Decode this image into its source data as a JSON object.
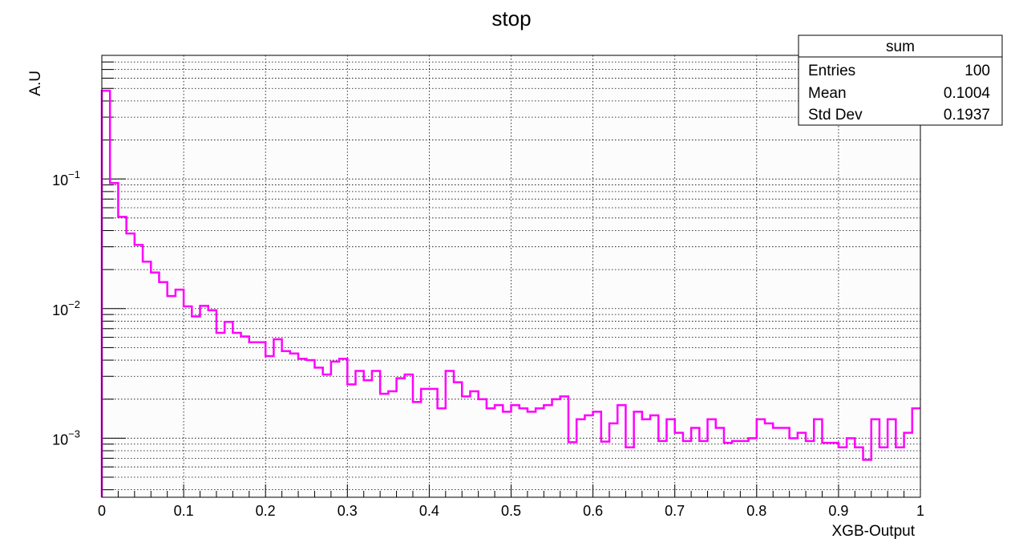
{
  "chart_data": {
    "type": "histogram",
    "title": "stop",
    "xlabel": "XGB-Output",
    "ylabel": "A.U",
    "xlim": [
      0,
      1
    ],
    "ylim": [
      0.00035,
      0.9
    ],
    "y_scale": "log",
    "grid": true,
    "line_color": "#ff00ff",
    "x_ticks": [
      "0",
      "0.1",
      "0.2",
      "0.3",
      "0.4",
      "0.5",
      "0.6",
      "0.7",
      "0.8",
      "0.9",
      "1"
    ],
    "y_ticks": [
      {
        "base": "10",
        "exp": "−1",
        "value": 0.1
      },
      {
        "base": "10",
        "exp": "−2",
        "value": 0.01
      },
      {
        "base": "10",
        "exp": "−3",
        "value": 0.001
      }
    ],
    "bins": 100,
    "series": [
      {
        "values": [
          0.48,
          0.093,
          0.051,
          0.038,
          0.031,
          0.023,
          0.019,
          0.016,
          0.0125,
          0.014,
          0.0104,
          0.0087,
          0.0105,
          0.0097,
          0.0065,
          0.0079,
          0.0065,
          0.0061,
          0.0055,
          0.0055,
          0.0043,
          0.0058,
          0.0047,
          0.0045,
          0.0041,
          0.004,
          0.0035,
          0.0031,
          0.0039,
          0.0041,
          0.0026,
          0.0033,
          0.0028,
          0.0033,
          0.0022,
          0.0023,
          0.0029,
          0.0031,
          0.0019,
          0.0024,
          0.0024,
          0.0017,
          0.0033,
          0.0027,
          0.0021,
          0.0023,
          0.002,
          0.0017,
          0.0018,
          0.0016,
          0.0018,
          0.0017,
          0.0016,
          0.0017,
          0.0018,
          0.002,
          0.0021,
          0.00093,
          0.0014,
          0.0015,
          0.0016,
          0.00094,
          0.0013,
          0.0018,
          0.00085,
          0.0016,
          0.0014,
          0.0015,
          0.00095,
          0.0014,
          0.0011,
          0.00095,
          0.0012,
          0.00095,
          0.0014,
          0.0012,
          0.00092,
          0.00095,
          0.00095,
          0.001,
          0.0014,
          0.0013,
          0.0012,
          0.0012,
          0.001,
          0.0011,
          0.00095,
          0.0014,
          0.00092,
          0.00092,
          0.00085,
          0.001,
          0.00085,
          0.00068,
          0.0014,
          0.00085,
          0.0014,
          0.00085,
          0.0011,
          0.0017
        ]
      }
    ]
  },
  "stats_box": {
    "title": "sum",
    "rows": [
      {
        "label": "Entries",
        "value": "100"
      },
      {
        "label": "Mean",
        "value": "0.1004"
      },
      {
        "label": "Std Dev",
        "value": "0.1937"
      }
    ]
  }
}
